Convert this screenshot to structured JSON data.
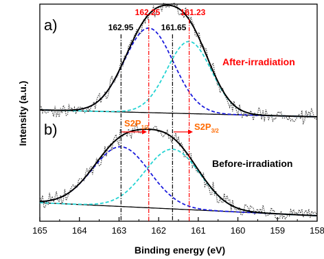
{
  "chart_data": {
    "type": "line",
    "xlabel": "Binding energy (eV)",
    "ylabel": "Intensity (a.u.)",
    "xlim": [
      165,
      158
    ],
    "x_reversed": true,
    "x_ticks": [
      "165",
      "164",
      "163",
      "162",
      "161",
      "160",
      "159",
      "158"
    ],
    "grid": false,
    "panels": [
      {
        "label": "a)",
        "condition": "After-irradiation",
        "condition_color": "#ff0000",
        "series": [
          {
            "role": "fit-envelope",
            "style": "solid",
            "color": "#000000",
            "centers": [
              162.25,
              161.23
            ],
            "amplitudes": [
              0.82,
              0.7
            ]
          },
          {
            "role": "component-1",
            "style": "dashed",
            "color": "#1a1adc",
            "center": 162.25,
            "amplitude": 0.82
          },
          {
            "role": "component-2",
            "style": "dashed",
            "color": "#22d3d3",
            "center": 161.23,
            "amplitude": 0.7
          },
          {
            "role": "baseline",
            "style": "solid",
            "color": "#000000"
          },
          {
            "role": "raw-data",
            "style": "dotted",
            "color": "#333333"
          }
        ]
      },
      {
        "label": "b)",
        "condition": "Before-irradiation",
        "condition_color": "#000000",
        "series": [
          {
            "role": "fit-envelope",
            "style": "solid",
            "color": "#000000",
            "centers": [
              162.95,
              161.65
            ],
            "amplitudes": [
              0.55,
              0.55
            ]
          },
          {
            "role": "component-1",
            "style": "dashed",
            "color": "#1a1adc",
            "center": 162.95,
            "amplitude": 0.55
          },
          {
            "role": "component-2",
            "style": "dashed",
            "color": "#22d3d3",
            "center": 161.65,
            "amplitude": 0.55
          },
          {
            "role": "baseline",
            "style": "solid",
            "color": "#000000"
          },
          {
            "role": "raw-data",
            "style": "dotted",
            "color": "#333333"
          }
        ]
      }
    ],
    "reference_lines": [
      {
        "x": 162.95,
        "label": "162.95",
        "color": "#000000",
        "style": "dash-dot"
      },
      {
        "x": 162.25,
        "label": "162.25",
        "color": "#ff0000",
        "style": "dash-dot"
      },
      {
        "x": 161.65,
        "label": "161.65",
        "color": "#000000",
        "style": "dash-dot"
      },
      {
        "x": 161.23,
        "label": "161.23",
        "color": "#ff0000",
        "style": "dash-dot"
      }
    ],
    "shift_arrows": [
      {
        "from": 162.95,
        "to": 162.25,
        "label_main": "S2P",
        "label_sub": "1/2",
        "color": "#ff6a00"
      },
      {
        "from": 161.65,
        "to": 161.23,
        "label_main": "S2P",
        "label_sub": "3/2",
        "color": "#ff6a00"
      }
    ]
  }
}
